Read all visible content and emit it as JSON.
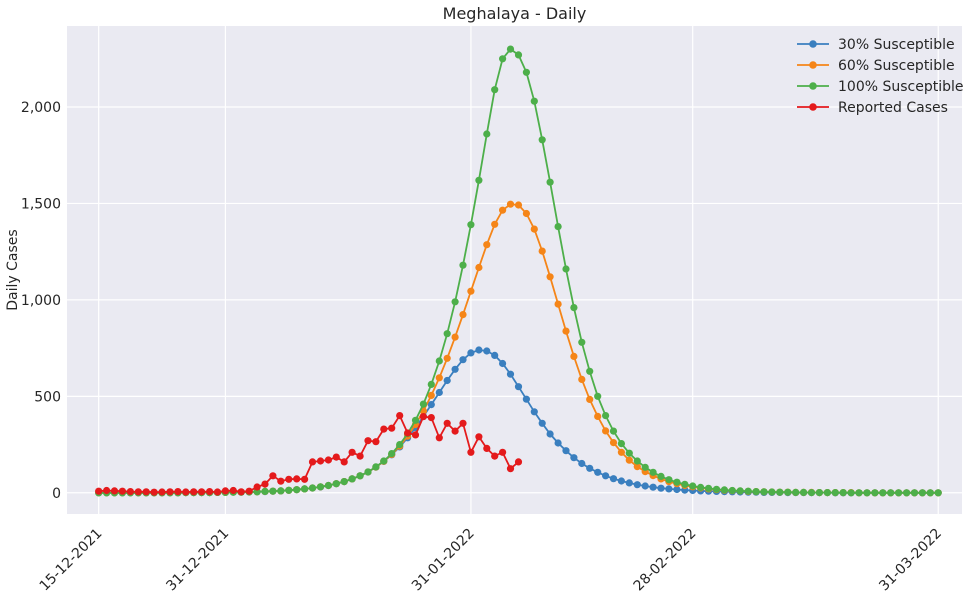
{
  "chart_data": {
    "type": "line",
    "title": "Meghalaya - Daily",
    "xlabel": "",
    "ylabel": "Daily Cases",
    "x_start": "2021-12-15",
    "ylim": [
      -110,
      2420
    ],
    "xticks": [
      {
        "day": 0,
        "label": "15-12-2021"
      },
      {
        "day": 16,
        "label": "31-12-2021"
      },
      {
        "day": 47,
        "label": "31-01-2022"
      },
      {
        "day": 75,
        "label": "28-02-2022"
      },
      {
        "day": 106,
        "label": "31-03-2022"
      }
    ],
    "yticks": [
      {
        "value": 0,
        "label": "0"
      },
      {
        "value": 500,
        "label": "500"
      },
      {
        "value": 1000,
        "label": "1,000"
      },
      {
        "value": 1500,
        "label": "1,500"
      },
      {
        "value": 2000,
        "label": "2,000"
      }
    ],
    "grid": true,
    "legend_position": "top-right",
    "series": [
      {
        "name": "30% Susceptible",
        "color": "#3a7fbf",
        "values": [
          0,
          0,
          0,
          0,
          0,
          0,
          0,
          0,
          0,
          0,
          0,
          1,
          1,
          1,
          1,
          2,
          2,
          3,
          3,
          4,
          5,
          6,
          8,
          10,
          13,
          16,
          20,
          25,
          30,
          38,
          47,
          58,
          72,
          88,
          108,
          133,
          163,
          197,
          238,
          285,
          338,
          396,
          457,
          520,
          582,
          640,
          690,
          725,
          740,
          735,
          712,
          670,
          615,
          550,
          485,
          420,
          360,
          305,
          258,
          218,
          182,
          152,
          127,
          106,
          88,
          73,
          61,
          51,
          42,
          35,
          29,
          24,
          20,
          17,
          14,
          12,
          10,
          8,
          7,
          6,
          5,
          4,
          3,
          3,
          2,
          2,
          2,
          1,
          1,
          1,
          1,
          1,
          1,
          0,
          0,
          0,
          0,
          0,
          0,
          0,
          0,
          0,
          0,
          0,
          0,
          0,
          0
        ]
      },
      {
        "name": "60% Susceptible",
        "color": "#f58518",
        "values": [
          0,
          0,
          0,
          0,
          0,
          0,
          0,
          0,
          0,
          0,
          0,
          1,
          1,
          1,
          1,
          2,
          2,
          3,
          3,
          4,
          5,
          7,
          8,
          10,
          13,
          16,
          20,
          25,
          31,
          38,
          47,
          58,
          72,
          88,
          108,
          133,
          163,
          199,
          242,
          294,
          354,
          424,
          505,
          596,
          697,
          807,
          924,
          1045,
          1168,
          1286,
          1392,
          1465,
          1496,
          1492,
          1448,
          1367,
          1253,
          1120,
          978,
          838,
          707,
          588,
          484,
          396,
          321,
          260,
          210,
          169,
          136,
          110,
          89,
          72,
          58,
          47,
          38,
          31,
          25,
          20,
          16,
          13,
          11,
          9,
          7,
          6,
          5,
          4,
          3,
          3,
          2,
          2,
          2,
          1,
          1,
          1,
          1,
          1,
          0,
          0,
          0,
          0,
          0,
          0,
          0,
          0,
          0,
          0,
          0
        ]
      },
      {
        "name": "100% Susceptible",
        "color": "#4daf4a",
        "values": [
          0,
          0,
          0,
          0,
          0,
          0,
          0,
          0,
          0,
          0,
          0,
          1,
          1,
          1,
          1,
          2,
          2,
          3,
          3,
          4,
          5,
          7,
          8,
          10,
          13,
          16,
          20,
          25,
          31,
          38,
          47,
          58,
          72,
          88,
          108,
          134,
          165,
          203,
          250,
          307,
          376,
          460,
          562,
          683,
          825,
          990,
          1180,
          1390,
          1620,
          1860,
          2090,
          2250,
          2300,
          2270,
          2180,
          2030,
          1830,
          1610,
          1380,
          1160,
          960,
          780,
          630,
          500,
          400,
          320,
          255,
          205,
          165,
          132,
          106,
          85,
          68,
          55,
          44,
          35,
          28,
          23,
          18,
          15,
          12,
          10,
          8,
          6,
          5,
          4,
          3,
          3,
          2,
          2,
          1,
          1,
          1,
          1,
          1,
          0,
          0,
          0,
          0,
          0,
          0,
          0,
          0,
          0,
          0,
          0,
          0
        ]
      },
      {
        "name": "Reported Cases",
        "color": "#e41a1c",
        "x_offset": 0,
        "values": [
          8,
          12,
          10,
          8,
          6,
          5,
          5,
          3,
          4,
          5,
          6,
          4,
          5,
          5,
          6,
          4,
          10,
          12,
          5,
          8,
          30,
          45,
          88,
          60,
          70,
          72,
          70,
          160,
          165,
          170,
          185,
          160,
          210,
          190,
          270,
          265,
          330,
          335,
          400,
          310,
          300,
          395,
          390,
          285,
          360,
          320,
          360,
          210,
          290,
          230,
          190,
          210,
          125,
          160
        ]
      }
    ]
  }
}
